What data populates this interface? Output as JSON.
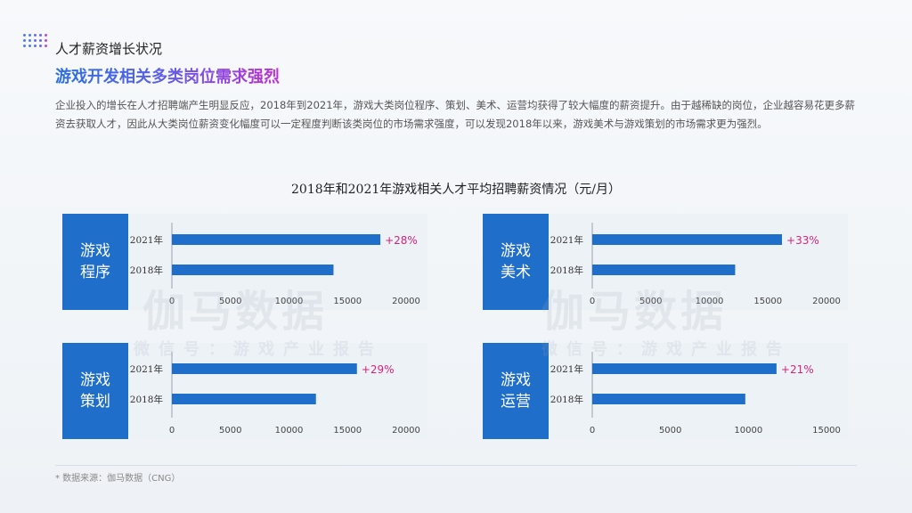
{
  "header": {
    "eyebrow": "人才薪资增长状况",
    "headline": "游戏开发相关多类岗位需求强烈",
    "intro": "企业投入的增长在人才招聘端产生明显反应，2018年到2021年，游戏大类岗位程序、策划、美术、运营均获得了较大幅度的薪资提升。由于越稀缺的岗位，企业越容易花更多薪资去获取人才，因此从大类岗位薪资变化幅度可以一定程度判断该类岗位的市场需求强度，可以发现2018年以来，游戏美术与游戏策划的市场需求更为强烈。"
  },
  "chart_title": "2018年和2021年游戏相关人才平均招聘薪资情况（元/月）",
  "watermark": {
    "brand": "伽马数据",
    "wechat": "微信号：游戏产业报告"
  },
  "footer": {
    "source": "* 数据来源：伽马数据（CNG）"
  },
  "colors": {
    "bar": "#1f6ec9",
    "tag_bg": "#1f6ec9",
    "growth_label": "#d6247a",
    "panel_bg": "#ecf1f7"
  },
  "chart_data": [
    {
      "type": "bar",
      "orientation": "horizontal",
      "tag": "游戏\n程序",
      "categories": [
        "2021年",
        "2018年"
      ],
      "values": [
        17800,
        13800
      ],
      "growth_label": "+28%",
      "xlim": [
        0,
        20000
      ],
      "xticks": [
        "0",
        "5000",
        "10000",
        "15000",
        "20000"
      ]
    },
    {
      "type": "bar",
      "orientation": "horizontal",
      "tag": "游戏\n美术",
      "categories": [
        "2021年",
        "2018年"
      ],
      "values": [
        16200,
        12200
      ],
      "growth_label": "+33%",
      "xlim": [
        0,
        20000
      ],
      "xticks": [
        "0",
        "5000",
        "10000",
        "15000",
        "20000"
      ]
    },
    {
      "type": "bar",
      "orientation": "horizontal",
      "tag": "游戏\n策划",
      "categories": [
        "2021年",
        "2018年"
      ],
      "values": [
        15800,
        12300
      ],
      "growth_label": "+29%",
      "xlim": [
        0,
        20000
      ],
      "xticks": [
        "0",
        "5000",
        "10000",
        "15000",
        "20000"
      ]
    },
    {
      "type": "bar",
      "orientation": "horizontal",
      "tag": "游戏\n运营",
      "categories": [
        "2021年",
        "2018年"
      ],
      "values": [
        11800,
        9800
      ],
      "growth_label": "+21%",
      "xlim": [
        0,
        15000
      ],
      "xticks": [
        "0",
        "5000",
        "10000",
        "15000"
      ]
    }
  ]
}
